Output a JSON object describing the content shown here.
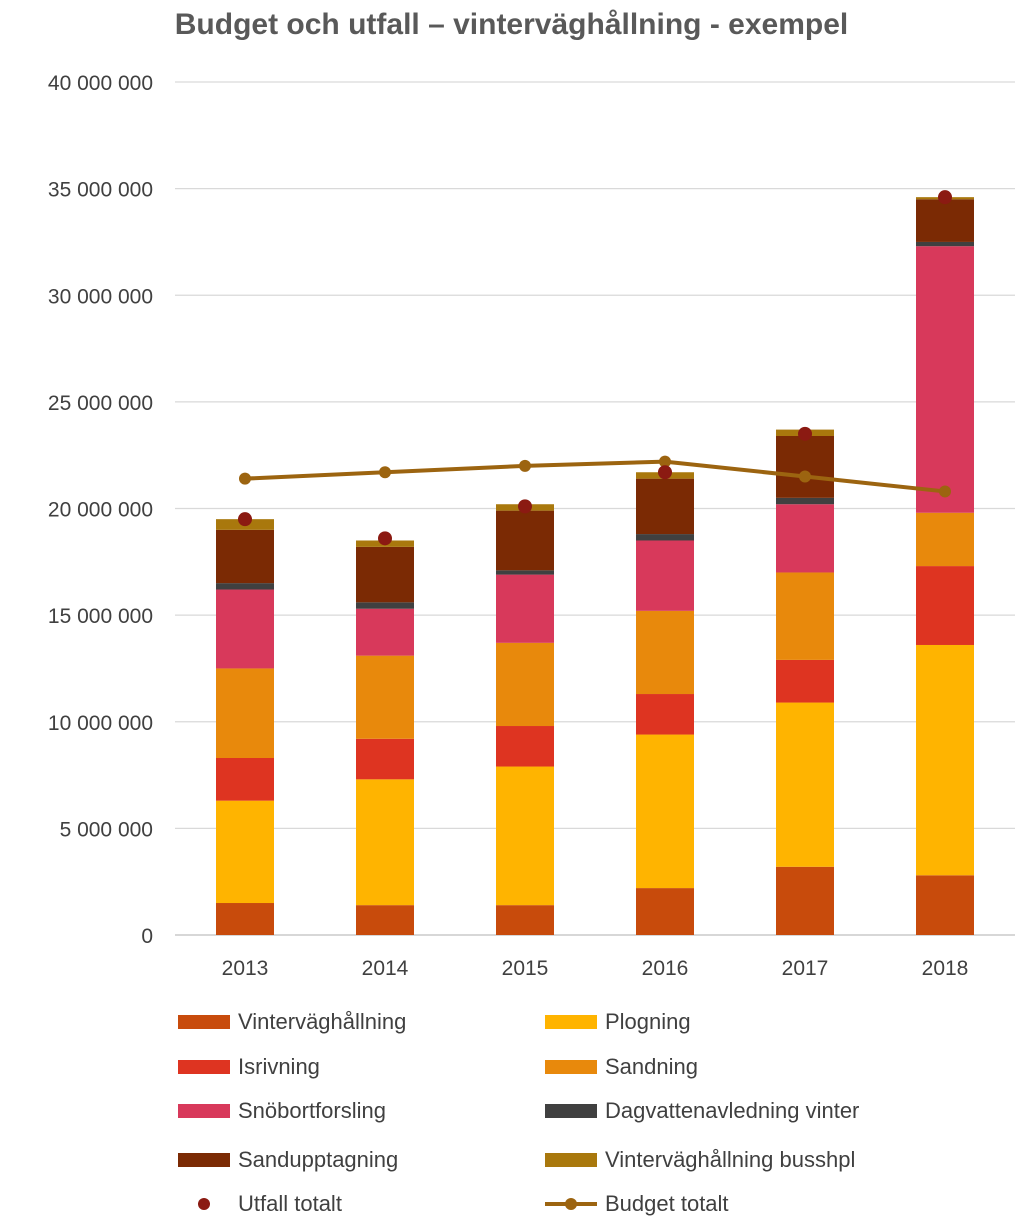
{
  "chart_data": {
    "type": "bar",
    "title": "Budget och utfall – vinterväghållning - exempel",
    "categories": [
      "2013",
      "2014",
      "2015",
      "2016",
      "2017",
      "2018"
    ],
    "ylim": [
      0,
      40000000
    ],
    "yticks": [
      0,
      5000000,
      10000000,
      15000000,
      20000000,
      25000000,
      30000000,
      35000000,
      40000000
    ],
    "ytick_labels": [
      "0",
      "5 000 000",
      "10 000 000",
      "15 000 000",
      "20 000 000",
      "25 000 000",
      "30 000 000",
      "35 000 000",
      "40 000 000"
    ],
    "grid": true,
    "legend_position": "bottom",
    "stacked": true,
    "series": [
      {
        "name": "Vinterväghållning",
        "color": "#C84B0C",
        "values": [
          1500000,
          1400000,
          1400000,
          2200000,
          3200000,
          2800000
        ]
      },
      {
        "name": "Plogning",
        "color": "#FFB400",
        "values": [
          4800000,
          5900000,
          6500000,
          7200000,
          7700000,
          10800000
        ]
      },
      {
        "name": "Isrivning",
        "color": "#DE3421",
        "values": [
          2000000,
          1900000,
          1900000,
          1900000,
          2000000,
          3700000
        ]
      },
      {
        "name": "Sandning",
        "color": "#E8890C",
        "values": [
          4200000,
          3900000,
          3900000,
          3900000,
          4100000,
          2500000
        ]
      },
      {
        "name": "Snöbortforsling",
        "color": "#D8395B",
        "values": [
          3700000,
          2200000,
          3200000,
          3300000,
          3200000,
          12500000
        ]
      },
      {
        "name": "Dagvattenavledning vinter",
        "color": "#404040",
        "values": [
          300000,
          300000,
          200000,
          300000,
          300000,
          200000
        ]
      },
      {
        "name": "Sandupptagning",
        "color": "#7B2A04",
        "values": [
          2500000,
          2600000,
          2800000,
          2600000,
          2900000,
          2000000
        ]
      },
      {
        "name": "Vinterväghållning busshpl",
        "color": "#A9780D",
        "values": [
          500000,
          300000,
          300000,
          300000,
          300000,
          100000
        ]
      }
    ],
    "points": {
      "name": "Utfall totalt",
      "color": "#8B1A12",
      "values": [
        19500000,
        18600000,
        20100000,
        21700000,
        23500000,
        34600000
      ]
    },
    "line": {
      "name": "Budget totalt",
      "color": "#9C6410",
      "values": [
        21400000,
        21700000,
        22000000,
        22200000,
        21500000,
        20800000
      ]
    }
  },
  "legend": [
    {
      "label": "Vinterväghållning",
      "kind": "swatch",
      "color": "#C84B0C"
    },
    {
      "label": "Plogning",
      "kind": "swatch",
      "color": "#FFB400"
    },
    {
      "label": "Isrivning",
      "kind": "swatch",
      "color": "#DE3421"
    },
    {
      "label": "Sandning",
      "kind": "swatch",
      "color": "#E8890C"
    },
    {
      "label": "Snöbortforsling",
      "kind": "swatch",
      "color": "#D8395B"
    },
    {
      "label": "Dagvattenavledning vinter",
      "kind": "swatch",
      "color": "#404040"
    },
    {
      "label": "Sandupptagning",
      "kind": "swatch",
      "color": "#7B2A04"
    },
    {
      "label": "Vinterväghållning busshpl",
      "kind": "swatch",
      "color": "#A9780D"
    },
    {
      "label": "Utfall totalt",
      "kind": "dot",
      "color": "#8B1A12"
    },
    {
      "label": "Budget totalt",
      "kind": "line",
      "color": "#9C6410"
    }
  ]
}
